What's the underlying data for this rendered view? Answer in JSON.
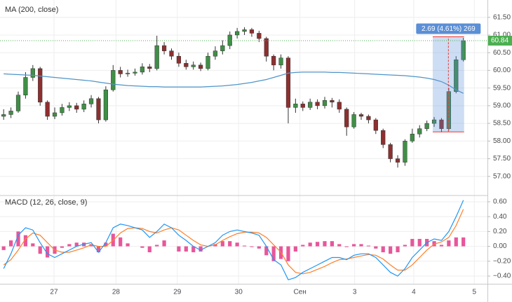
{
  "chart_data": [
    {
      "type": "candlestick",
      "up_color": "#3f8f46",
      "down_color": "#8e2f2f",
      "open": [
        58.7,
        58.75,
        58.85,
        59.3,
        59.8,
        60.05,
        59.1,
        58.7,
        58.8,
        58.95,
        59.0,
        58.9,
        59.05,
        59.2,
        58.6,
        59.45,
        60.0,
        59.9,
        59.92,
        59.95,
        60.1,
        60.05,
        60.7,
        60.55,
        60.4,
        60.2,
        60.1,
        60.15,
        60.05,
        60.4,
        60.55,
        60.7,
        61.0,
        61.1,
        61.15,
        61.05,
        60.9,
        60.4,
        60.15,
        60.35,
        58.95,
        59.05,
        58.95,
        59.1,
        59.0,
        59.15,
        59.1,
        58.9,
        58.4,
        58.75,
        58.7,
        58.6,
        58.3,
        57.9,
        57.5,
        57.4,
        58.0,
        58.2,
        58.35,
        58.5,
        58.6,
        58.35,
        59.4,
        60.3
      ],
      "high": [
        58.9,
        58.95,
        59.4,
        59.95,
        60.15,
        60.1,
        59.15,
        58.95,
        59.05,
        59.1,
        59.08,
        59.15,
        59.3,
        59.25,
        59.55,
        60.15,
        60.1,
        60.02,
        60.05,
        60.2,
        60.18,
        60.98,
        60.8,
        60.62,
        60.5,
        60.3,
        60.25,
        60.22,
        60.5,
        60.68,
        60.85,
        61.1,
        61.2,
        61.22,
        61.2,
        61.12,
        60.95,
        60.45,
        60.45,
        60.4,
        59.2,
        59.12,
        59.2,
        59.18,
        59.25,
        59.22,
        59.18,
        58.95,
        58.82,
        58.8,
        58.75,
        58.65,
        58.35,
        57.95,
        57.6,
        58.05,
        58.35,
        58.45,
        58.58,
        58.68,
        58.65,
        59.5,
        60.4,
        60.92
      ],
      "low": [
        58.6,
        58.65,
        58.8,
        59.2,
        59.7,
        59.0,
        58.6,
        58.62,
        58.72,
        58.85,
        58.8,
        58.82,
        58.95,
        58.5,
        58.55,
        59.4,
        59.8,
        59.82,
        59.85,
        59.88,
        59.95,
        60.0,
        60.45,
        60.3,
        60.1,
        60.02,
        60.02,
        59.98,
        60.0,
        60.3,
        60.45,
        60.6,
        60.9,
        61.0,
        60.95,
        60.8,
        60.25,
        60.0,
        60.05,
        58.5,
        58.8,
        58.85,
        58.88,
        58.9,
        58.92,
        58.95,
        58.8,
        58.15,
        58.35,
        58.6,
        58.5,
        58.2,
        57.8,
        57.4,
        57.25,
        57.3,
        57.95,
        58.1,
        58.28,
        58.4,
        58.25,
        58.3,
        59.35,
        60.25
      ],
      "close": [
        58.75,
        58.85,
        59.3,
        59.8,
        60.05,
        59.1,
        58.7,
        58.8,
        58.95,
        59.0,
        58.9,
        59.05,
        59.2,
        58.6,
        59.45,
        60.0,
        59.9,
        59.92,
        59.95,
        60.1,
        60.05,
        60.7,
        60.55,
        60.4,
        60.2,
        60.1,
        60.15,
        60.05,
        60.4,
        60.55,
        60.7,
        61.0,
        61.1,
        61.15,
        61.05,
        60.9,
        60.4,
        60.15,
        60.35,
        58.95,
        59.05,
        58.95,
        59.1,
        59.0,
        59.15,
        59.1,
        58.9,
        58.4,
        58.75,
        58.7,
        58.6,
        58.3,
        57.9,
        57.5,
        57.4,
        58.0,
        58.2,
        58.35,
        58.5,
        58.6,
        58.35,
        59.4,
        60.3,
        60.84
      ],
      "ma": {
        "name": "MA (200, close)",
        "color": "#4f94c8",
        "values": [
          59.9,
          59.89,
          59.88,
          59.87,
          59.86,
          59.84,
          59.82,
          59.8,
          59.78,
          59.76,
          59.74,
          59.72,
          59.7,
          59.67,
          59.64,
          59.61,
          59.59,
          59.57,
          59.56,
          59.55,
          59.54,
          59.54,
          59.53,
          59.53,
          59.53,
          59.53,
          59.53,
          59.53,
          59.54,
          59.55,
          59.56,
          59.58,
          59.6,
          59.63,
          59.66,
          59.7,
          59.74,
          59.8,
          59.86,
          59.92,
          59.94,
          59.95,
          59.95,
          59.95,
          59.95,
          59.94,
          59.94,
          59.93,
          59.92,
          59.91,
          59.9,
          59.89,
          59.88,
          59.87,
          59.86,
          59.85,
          59.83,
          59.81,
          59.78,
          59.74,
          59.68,
          59.58,
          59.45,
          59.35
        ]
      },
      "last_price": 60.84,
      "last_price_color": "#4caf50",
      "measure": {
        "label": "2.69 (4.61%) 269",
        "low": 58.26,
        "high": 60.95,
        "x_from": 58.8,
        "x_to": 63.1,
        "color": "#5b8fd6",
        "edge_color": "#e53935"
      },
      "xlim": [
        -0.5,
        66.3
      ],
      "ylim": [
        56.48,
        61.99
      ],
      "yticks": [
        {
          "value": 61.5,
          "label": "61.50"
        },
        {
          "value": 61,
          "label": "61.00"
        },
        {
          "value": 60.5,
          "label": "60.50"
        },
        {
          "value": 60,
          "label": "60.00"
        },
        {
          "value": 59.5,
          "label": "59.50"
        },
        {
          "value": 59,
          "label": "59.00"
        },
        {
          "value": 58.5,
          "label": "58.50"
        },
        {
          "value": 58,
          "label": "58.00"
        },
        {
          "value": 57.5,
          "label": "57.50"
        },
        {
          "value": 57,
          "label": "57.00"
        }
      ],
      "grid": true
    },
    {
      "type": "macd",
      "title": "MACD (12, 26, close, 9)",
      "macd": {
        "color": "#2196f3",
        "values": [
          -0.3,
          -0.1,
          0.15,
          0.25,
          0.22,
          0.05,
          -0.1,
          -0.15,
          -0.1,
          -0.05,
          0.0,
          0.03,
          0.05,
          -0.08,
          0.05,
          0.25,
          0.3,
          0.28,
          0.25,
          0.22,
          0.12,
          0.2,
          0.3,
          0.25,
          0.15,
          0.08,
          0.0,
          -0.05,
          0.0,
          0.05,
          0.15,
          0.2,
          0.22,
          0.2,
          0.18,
          0.15,
          0.0,
          -0.18,
          -0.25,
          -0.45,
          -0.42,
          -0.35,
          -0.3,
          -0.25,
          -0.2,
          -0.15,
          -0.15,
          -0.18,
          -0.12,
          -0.1,
          -0.1,
          -0.15,
          -0.25,
          -0.35,
          -0.4,
          -0.3,
          -0.15,
          -0.05,
          0.05,
          0.1,
          0.08,
          0.2,
          0.4,
          0.62
        ]
      },
      "signal": {
        "color": "#ff7f27",
        "values": [
          -0.25,
          -0.18,
          -0.05,
          0.1,
          0.18,
          0.15,
          0.05,
          -0.05,
          -0.08,
          -0.08,
          -0.05,
          -0.02,
          0.02,
          0.0,
          0.0,
          0.08,
          0.18,
          0.24,
          0.25,
          0.24,
          0.2,
          0.18,
          0.22,
          0.25,
          0.22,
          0.15,
          0.08,
          0.02,
          0.0,
          0.02,
          0.08,
          0.13,
          0.17,
          0.19,
          0.19,
          0.18,
          0.12,
          0.02,
          -0.08,
          -0.25,
          -0.35,
          -0.37,
          -0.35,
          -0.31,
          -0.27,
          -0.22,
          -0.18,
          -0.17,
          -0.15,
          -0.13,
          -0.11,
          -0.12,
          -0.17,
          -0.25,
          -0.32,
          -0.32,
          -0.25,
          -0.15,
          -0.05,
          0.03,
          0.06,
          0.12,
          0.28,
          0.5
        ]
      },
      "histogram": {
        "color": "#e8569a",
        "values": [
          -0.05,
          0.08,
          0.2,
          0.15,
          0.04,
          -0.1,
          -0.15,
          -0.1,
          -0.02,
          0.03,
          0.05,
          0.05,
          0.03,
          -0.08,
          0.05,
          0.17,
          0.12,
          0.04,
          0.0,
          -0.02,
          -0.08,
          0.02,
          0.08,
          0.0,
          -0.07,
          -0.07,
          -0.08,
          -0.07,
          0.0,
          0.03,
          0.07,
          0.07,
          0.05,
          0.01,
          -0.01,
          -0.03,
          -0.12,
          -0.2,
          -0.17,
          -0.2,
          -0.07,
          0.02,
          0.05,
          0.06,
          0.07,
          0.07,
          0.03,
          -0.01,
          0.03,
          0.03,
          0.01,
          -0.03,
          -0.08,
          -0.1,
          -0.08,
          0.02,
          0.1,
          0.1,
          0.1,
          0.07,
          0.02,
          0.08,
          0.12,
          0.12
        ]
      },
      "xlim": [
        -0.5,
        66.3
      ],
      "ylim": [
        -0.504,
        0.675
      ],
      "yticks": [
        {
          "value": 0.6,
          "label": "0.60"
        },
        {
          "value": 0.4,
          "label": "0.40"
        },
        {
          "value": 0.2,
          "label": "0.20"
        },
        {
          "value": 0,
          "label": "0.00"
        },
        {
          "value": -0.2,
          "label": "−0.20"
        },
        {
          "value": -0.4,
          "label": "−0.40"
        }
      ],
      "xticks": [
        {
          "value": 6.9,
          "label": "27"
        },
        {
          "value": 15.4,
          "label": "28"
        },
        {
          "value": 23.8,
          "label": "29"
        },
        {
          "value": 32.2,
          "label": "30"
        },
        {
          "value": 40.6,
          "label": "Сен"
        },
        {
          "value": 48.1,
          "label": "3"
        },
        {
          "value": 56.2,
          "label": "4"
        },
        {
          "value": 64.5,
          "label": "5"
        }
      ],
      "grid": true
    }
  ]
}
